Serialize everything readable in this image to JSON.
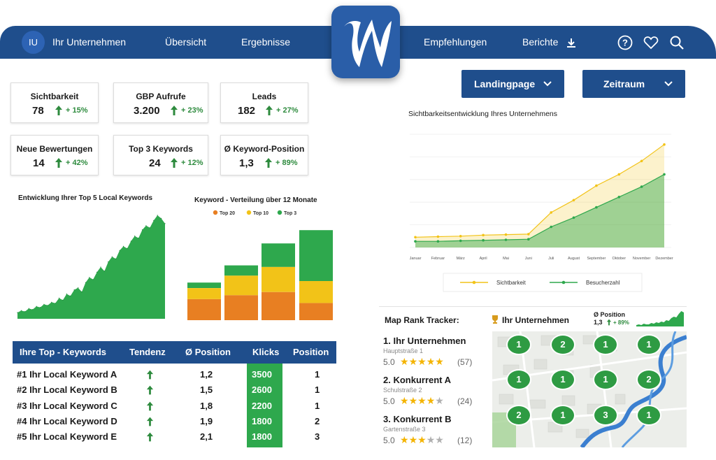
{
  "nav": {
    "avatar": "IU",
    "company": "Ihr Unternehmen",
    "items": [
      "Übersicht",
      "Ergebnisse",
      "Empfehlungen",
      "Berichte"
    ],
    "icons": [
      "download-icon",
      "help-icon",
      "heart-icon",
      "search-icon"
    ]
  },
  "colors": {
    "navy": "#1f4e8c",
    "green": "#2e8b3e",
    "chartGreen": "#2ea84d",
    "orange": "#e87f22",
    "yellow": "#f2c318"
  },
  "filters": {
    "landingpage": "Landingpage",
    "zeitraum": "Zeitraum"
  },
  "kpis": [
    {
      "label": "Sichtbarkeit",
      "value": "78",
      "change": "+ 15%"
    },
    {
      "label": "GBP Aufrufe",
      "value": "3.200",
      "change": "+ 23%"
    },
    {
      "label": "Leads",
      "value": "182",
      "change": "+ 27%"
    },
    {
      "label": "Neue Bewertungen",
      "value": "14",
      "change": "+ 42%"
    },
    {
      "label": "Top 3 Keywords",
      "value": "24",
      "change": "+ 12%"
    },
    {
      "label": "Ø Keyword-Position",
      "value": "1,3",
      "change": "+ 89%"
    }
  ],
  "chart_data": [
    {
      "type": "area",
      "title": "Entwicklung Ihrer Top 5 Local Keywords",
      "x": [
        1,
        2,
        3,
        4,
        5,
        6,
        7,
        8,
        9,
        10,
        11,
        12,
        13,
        14,
        15,
        16,
        17,
        18,
        19,
        20,
        21,
        22,
        23,
        24,
        25,
        26,
        27,
        28,
        29,
        30,
        31,
        32,
        33,
        34,
        35,
        36,
        37,
        38,
        39,
        40
      ],
      "values": [
        6,
        8,
        7,
        10,
        9,
        12,
        11,
        14,
        13,
        16,
        15,
        20,
        18,
        24,
        22,
        28,
        30,
        26,
        35,
        40,
        38,
        45,
        50,
        46,
        55,
        60,
        58,
        66,
        70,
        68,
        75,
        80,
        78,
        86,
        90,
        88,
        95,
        100,
        97,
        92
      ],
      "ylim": [
        0,
        100
      ],
      "grid": false
    },
    {
      "type": "bar",
      "stacked": true,
      "title": "Keyword - Verteilung über 12 Monate",
      "legend": "top",
      "categories": [
        "1",
        "2",
        "3",
        "4"
      ],
      "series": [
        {
          "name": "Top 20",
          "color": "#e87f22",
          "values": [
            27,
            32,
            36,
            22
          ]
        },
        {
          "name": "Top 10",
          "color": "#f2c318",
          "values": [
            14,
            25,
            32,
            28
          ]
        },
        {
          "name": "Top 3",
          "color": "#2ea84d",
          "values": [
            7,
            13,
            30,
            65
          ]
        }
      ],
      "ylim": [
        0,
        120
      ]
    },
    {
      "type": "area",
      "title": "Sichtbarkeitsentwicklung Ihres Unternehmens",
      "legend": "bottom",
      "categories": [
        "Januar",
        "Februar",
        "März",
        "April",
        "Mai",
        "Juni",
        "Juli",
        "August",
        "September",
        "Oktober",
        "November",
        "Dezember"
      ],
      "series": [
        {
          "name": "Sichtbarkeit",
          "color": "#f2c318",
          "values": [
            10,
            10.5,
            11,
            12,
            12.5,
            13,
            34,
            46,
            60,
            71,
            84,
            100
          ]
        },
        {
          "name": "Besucherzahl",
          "color": "#2ea84d",
          "values": [
            6,
            6,
            6.5,
            7,
            7.5,
            8,
            20,
            29,
            39,
            49,
            59,
            71
          ]
        }
      ],
      "ylim": [
        0,
        110
      ],
      "grid": true
    }
  ],
  "keywords": {
    "headers": [
      "Ihre Top - Keywords",
      "Tendenz",
      "Ø Position",
      "Klicks",
      "Position"
    ],
    "rows": [
      {
        "keyword": "#1 Ihr Local Keyword A",
        "avg": "1,2",
        "clicks": "3500",
        "pos": "1"
      },
      {
        "keyword": "#2 Ihr Local Keyword B",
        "avg": "1,5",
        "clicks": "2600",
        "pos": "1"
      },
      {
        "keyword": "#3 Ihr Local Keyword C",
        "avg": "1,8",
        "clicks": "2200",
        "pos": "1"
      },
      {
        "keyword": "#4 Ihr Local Keyword D",
        "avg": "1,9",
        "clicks": "1800",
        "pos": "2"
      },
      {
        "keyword": "#5 Ihr Local Keyword E",
        "avg": "2,1",
        "clicks": "1800",
        "pos": "3"
      }
    ]
  },
  "maprank": {
    "title": "Map Rank Tracker:",
    "business": "Ihr Unternehmen",
    "pos_label": "Ø Position",
    "pos_value": "1,3",
    "pos_change": "+ 89%",
    "competitors": [
      {
        "name": "1.  Ihr Unternehmen",
        "addr": "Hauptstraße 1",
        "rating": "5.0",
        "stars": 5,
        "reviews": "(57)"
      },
      {
        "name": "2.  Konkurrent A",
        "addr": "Schulstraße 2",
        "rating": "5.0",
        "stars": 4,
        "reviews": "(24)"
      },
      {
        "name": "3.  Konkurrent B",
        "addr": "Gartenstraße 3",
        "rating": "5.0",
        "stars": 3,
        "reviews": "(12)"
      }
    ],
    "grid": [
      [
        "1",
        "2",
        "1",
        "1"
      ],
      [
        "1",
        "1",
        "1",
        "2"
      ],
      [
        "2",
        "1",
        "3",
        "1"
      ]
    ]
  }
}
